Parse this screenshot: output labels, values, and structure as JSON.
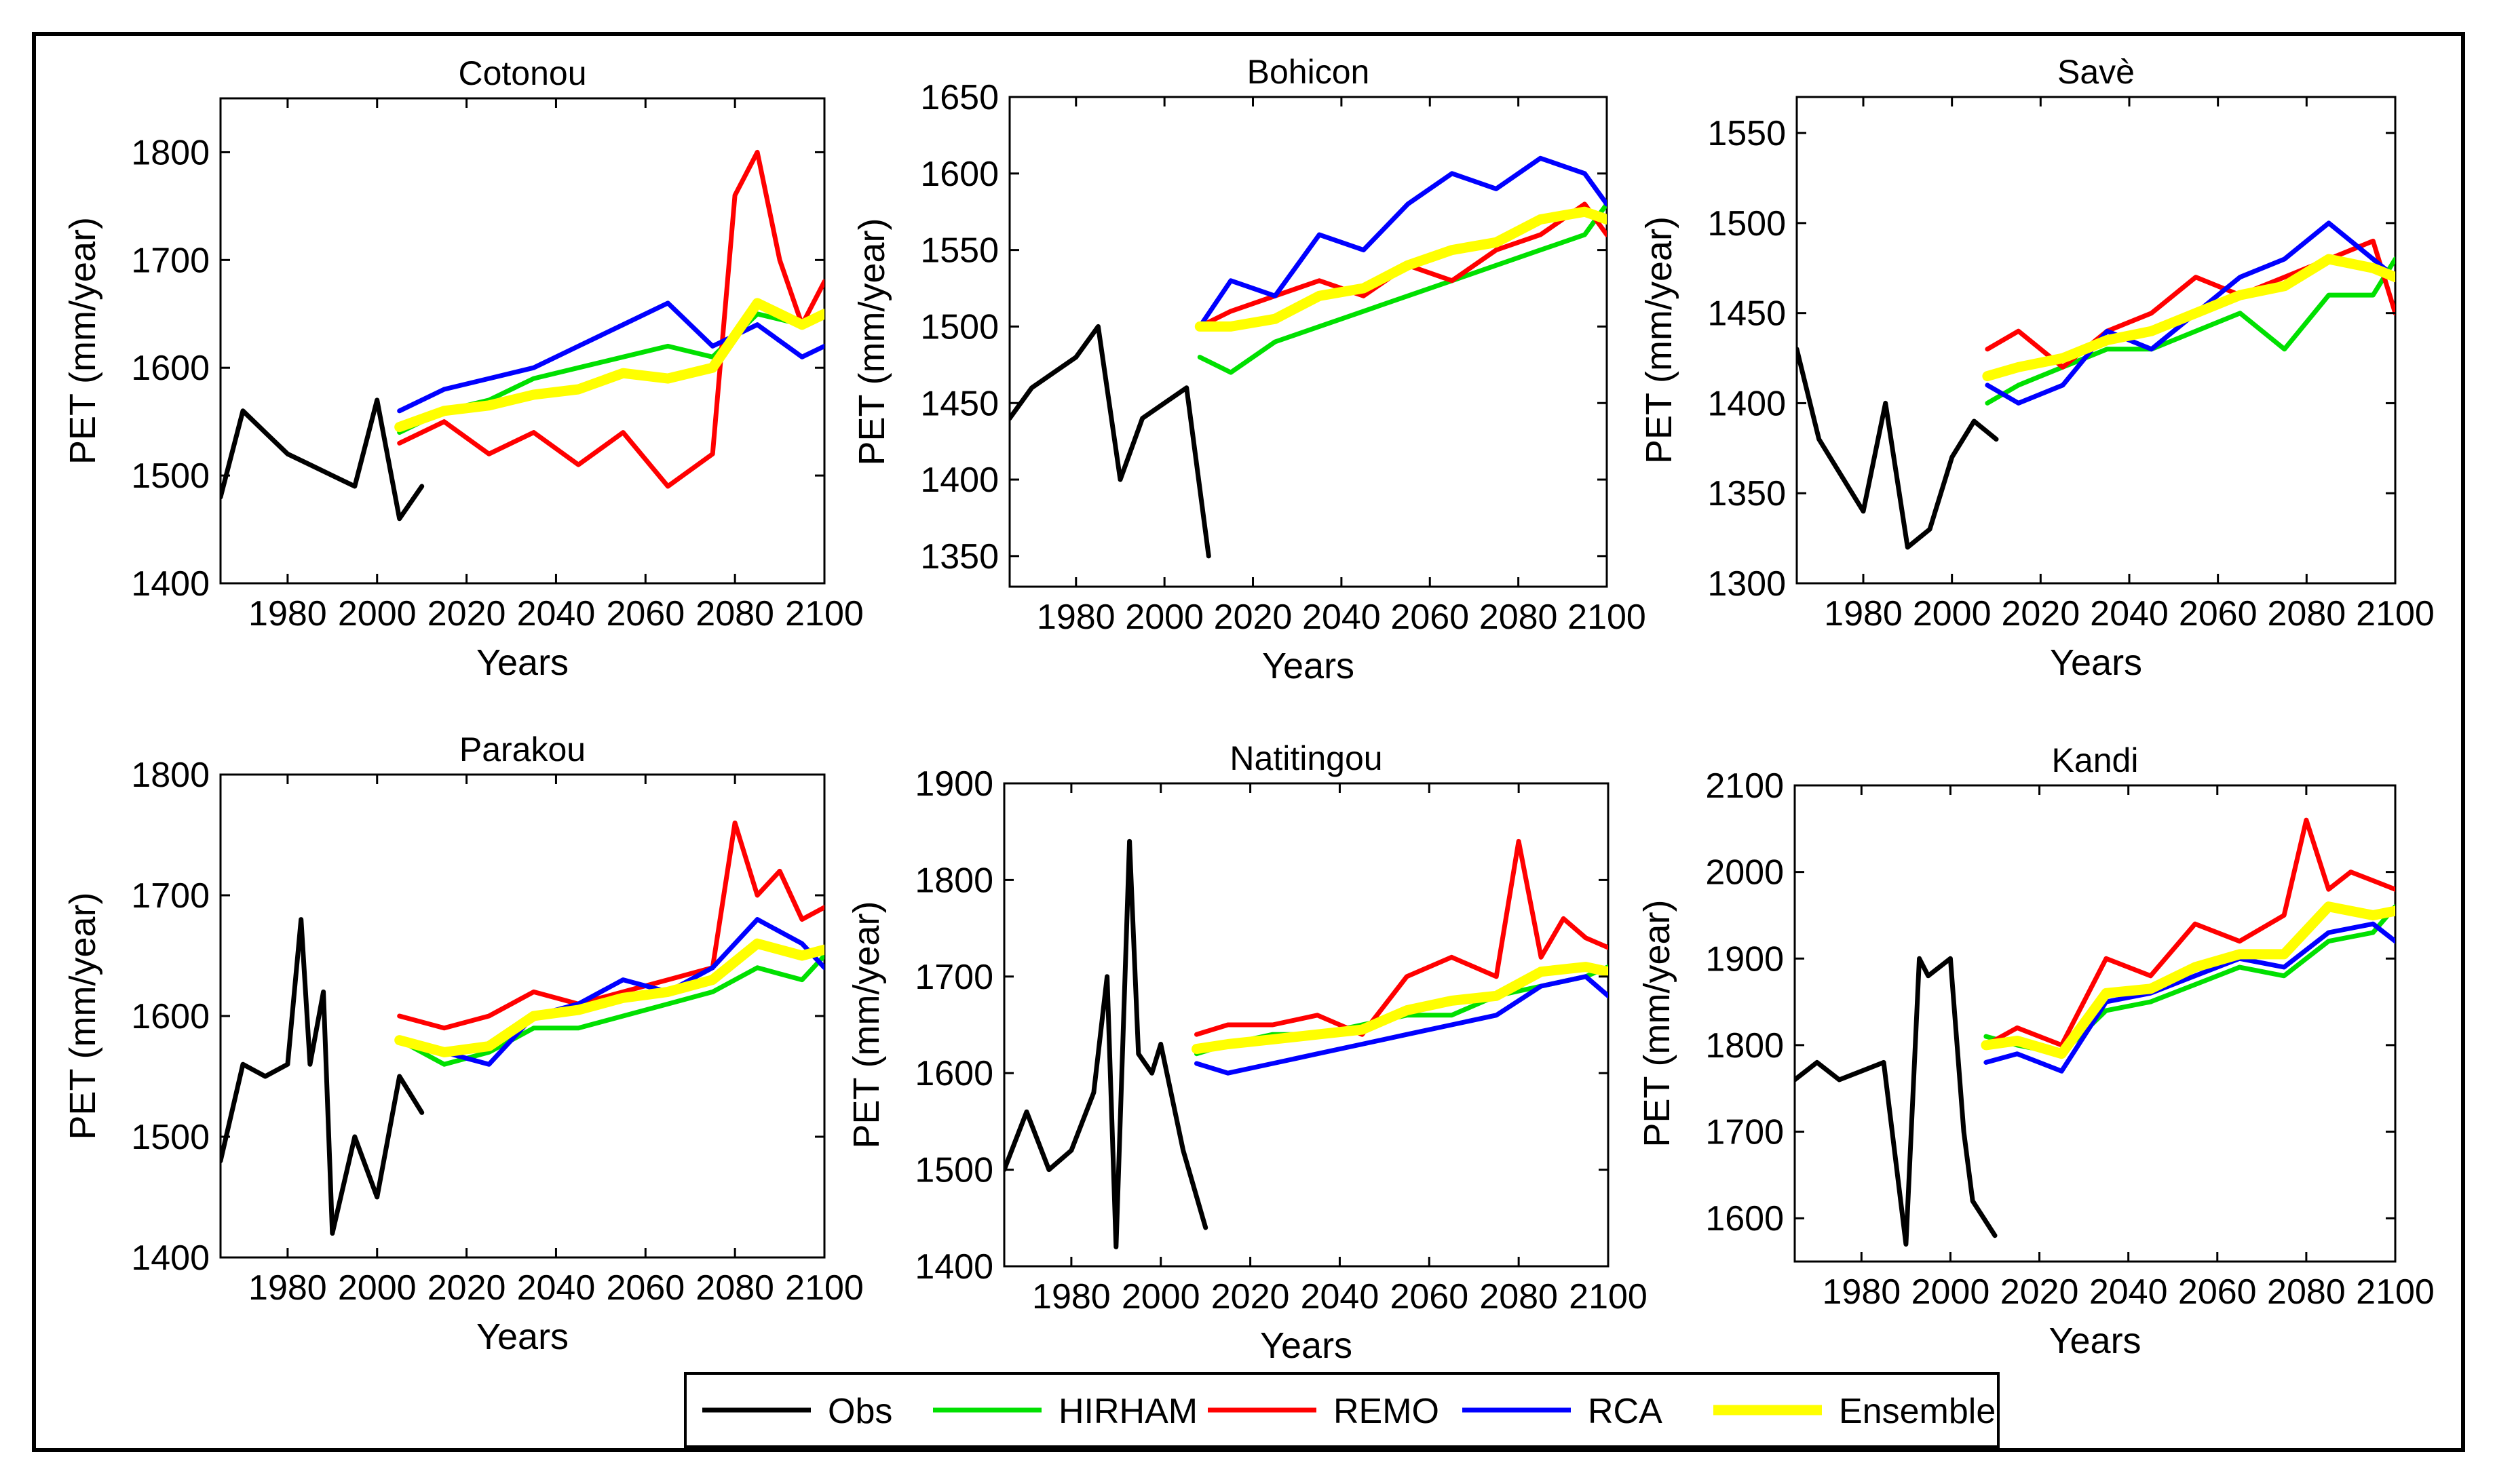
{
  "chart_data": {
    "type": "line",
    "layout": "grid-2x3",
    "xlim": [
      1965,
      2100
    ],
    "xticks": [
      1980,
      2000,
      2020,
      2040,
      2060,
      2080,
      2100
    ],
    "xlabel": "Years",
    "legend": {
      "placement": "bottom-center",
      "entries": [
        {
          "name": "Obs",
          "color": "#000000"
        },
        {
          "name": "HIRHAM",
          "color": "#00e000"
        },
        {
          "name": "REMO",
          "color": "#ff0000"
        },
        {
          "name": "RCA",
          "color": "#0000ff"
        },
        {
          "name": "Ensemble",
          "color": "#ffff00"
        }
      ]
    },
    "panels": [
      {
        "title": "Cotonou",
        "ylabel": "PET (mm/year)",
        "ylim": [
          1400,
          1850
        ],
        "yticks": [
          1400,
          1500,
          1600,
          1700,
          1800
        ],
        "series": [
          {
            "name": "Obs",
            "x": [
              1965,
              1970,
              1975,
              1980,
              1985,
              1990,
              1995,
              2000,
              2005,
              2010
            ],
            "values": [
              1480,
              1560,
              1540,
              1520,
              1510,
              1500,
              1490,
              1570,
              1460,
              1490
            ]
          },
          {
            "name": "HIRHAM",
            "x": [
              2005,
              2015,
              2025,
              2035,
              2045,
              2055,
              2065,
              2075,
              2085,
              2095,
              2100
            ],
            "values": [
              1540,
              1560,
              1570,
              1590,
              1600,
              1610,
              1620,
              1610,
              1650,
              1640,
              1650
            ]
          },
          {
            "name": "REMO",
            "x": [
              2005,
              2015,
              2025,
              2035,
              2045,
              2055,
              2065,
              2075,
              2080,
              2085,
              2090,
              2095,
              2100
            ],
            "values": [
              1530,
              1550,
              1520,
              1540,
              1510,
              1540,
              1490,
              1520,
              1760,
              1800,
              1700,
              1640,
              1680
            ]
          },
          {
            "name": "RCA",
            "x": [
              2005,
              2015,
              2025,
              2035,
              2045,
              2055,
              2065,
              2075,
              2085,
              2095,
              2100
            ],
            "values": [
              1560,
              1580,
              1590,
              1600,
              1620,
              1640,
              1660,
              1620,
              1640,
              1610,
              1620
            ]
          },
          {
            "name": "Ensemble",
            "x": [
              2005,
              2015,
              2025,
              2035,
              2045,
              2055,
              2065,
              2075,
              2085,
              2095,
              2100
            ],
            "values": [
              1545,
              1560,
              1565,
              1575,
              1580,
              1595,
              1590,
              1600,
              1660,
              1640,
              1650
            ]
          }
        ]
      },
      {
        "title": "Bohicon",
        "ylabel": "PET (mm/year)",
        "ylim": [
          1330,
          1650
        ],
        "yticks": [
          1350,
          1400,
          1450,
          1500,
          1550,
          1600,
          1650
        ],
        "series": [
          {
            "name": "Obs",
            "x": [
              1965,
              1970,
              1975,
              1980,
              1985,
              1990,
              1995,
              2000,
              2005,
              2010
            ],
            "values": [
              1440,
              1460,
              1470,
              1480,
              1500,
              1400,
              1440,
              1450,
              1460,
              1350
            ]
          },
          {
            "name": "HIRHAM",
            "x": [
              2008,
              2015,
              2025,
              2035,
              2045,
              2055,
              2065,
              2075,
              2085,
              2095,
              2100
            ],
            "values": [
              1480,
              1470,
              1490,
              1500,
              1510,
              1520,
              1530,
              1540,
              1550,
              1560,
              1580
            ]
          },
          {
            "name": "REMO",
            "x": [
              2008,
              2015,
              2025,
              2035,
              2045,
              2055,
              2065,
              2075,
              2085,
              2095,
              2100
            ],
            "values": [
              1500,
              1510,
              1520,
              1530,
              1520,
              1540,
              1530,
              1550,
              1560,
              1580,
              1560
            ]
          },
          {
            "name": "RCA",
            "x": [
              2008,
              2015,
              2025,
              2035,
              2045,
              2055,
              2065,
              2075,
              2085,
              2095,
              2100
            ],
            "values": [
              1500,
              1530,
              1520,
              1560,
              1550,
              1580,
              1600,
              1590,
              1610,
              1600,
              1580
            ]
          },
          {
            "name": "Ensemble",
            "x": [
              2008,
              2015,
              2025,
              2035,
              2045,
              2055,
              2065,
              2075,
              2085,
              2095,
              2100
            ],
            "values": [
              1500,
              1500,
              1505,
              1520,
              1525,
              1540,
              1550,
              1555,
              1570,
              1575,
              1570
            ]
          }
        ]
      },
      {
        "title": "Savè",
        "ylabel": "PET (mm/year)",
        "ylim": [
          1300,
          1570
        ],
        "yticks": [
          1300,
          1350,
          1400,
          1450,
          1500,
          1550
        ],
        "series": [
          {
            "name": "Obs",
            "x": [
              1965,
              1970,
              1975,
              1980,
              1985,
              1990,
              1995,
              2000,
              2005,
              2010
            ],
            "values": [
              1430,
              1380,
              1360,
              1340,
              1400,
              1320,
              1330,
              1370,
              1390,
              1380
            ]
          },
          {
            "name": "HIRHAM",
            "x": [
              2008,
              2015,
              2025,
              2035,
              2045,
              2055,
              2065,
              2075,
              2085,
              2095,
              2100
            ],
            "values": [
              1400,
              1410,
              1420,
              1430,
              1430,
              1440,
              1450,
              1430,
              1460,
              1460,
              1480
            ]
          },
          {
            "name": "REMO",
            "x": [
              2008,
              2015,
              2025,
              2035,
              2045,
              2055,
              2065,
              2075,
              2085,
              2095,
              2100
            ],
            "values": [
              1430,
              1440,
              1420,
              1440,
              1450,
              1470,
              1460,
              1470,
              1480,
              1490,
              1450
            ]
          },
          {
            "name": "RCA",
            "x": [
              2008,
              2015,
              2025,
              2035,
              2045,
              2055,
              2065,
              2075,
              2085,
              2095,
              2100
            ],
            "values": [
              1410,
              1400,
              1410,
              1440,
              1430,
              1450,
              1470,
              1480,
              1500,
              1480,
              1470
            ]
          },
          {
            "name": "Ensemble",
            "x": [
              2008,
              2015,
              2025,
              2035,
              2045,
              2055,
              2065,
              2075,
              2085,
              2095,
              2100
            ],
            "values": [
              1415,
              1420,
              1425,
              1435,
              1440,
              1450,
              1460,
              1465,
              1480,
              1475,
              1470
            ]
          }
        ]
      },
      {
        "title": "Parakou",
        "ylabel": "PET (mm/year)",
        "ylim": [
          1400,
          1800
        ],
        "yticks": [
          1400,
          1500,
          1600,
          1700,
          1800
        ],
        "series": [
          {
            "name": "Obs",
            "x": [
              1965,
              1970,
              1975,
              1980,
              1983,
              1985,
              1988,
              1990,
              1995,
              2000,
              2005,
              2010
            ],
            "values": [
              1480,
              1560,
              1550,
              1560,
              1680,
              1560,
              1620,
              1420,
              1500,
              1450,
              1550,
              1520
            ]
          },
          {
            "name": "HIRHAM",
            "x": [
              2005,
              2015,
              2025,
              2035,
              2045,
              2055,
              2065,
              2075,
              2085,
              2095,
              2100
            ],
            "values": [
              1580,
              1560,
              1570,
              1590,
              1590,
              1600,
              1610,
              1620,
              1640,
              1630,
              1650
            ]
          },
          {
            "name": "REMO",
            "x": [
              2005,
              2015,
              2025,
              2035,
              2045,
              2055,
              2065,
              2075,
              2080,
              2085,
              2090,
              2095,
              2100
            ],
            "values": [
              1600,
              1590,
              1600,
              1620,
              1610,
              1620,
              1630,
              1640,
              1760,
              1700,
              1720,
              1680,
              1690
            ]
          },
          {
            "name": "RCA",
            "x": [
              2005,
              2015,
              2025,
              2035,
              2045,
              2055,
              2065,
              2075,
              2085,
              2095,
              2100
            ],
            "values": [
              1580,
              1570,
              1560,
              1600,
              1610,
              1630,
              1620,
              1640,
              1680,
              1660,
              1640
            ]
          },
          {
            "name": "Ensemble",
            "x": [
              2005,
              2015,
              2025,
              2035,
              2045,
              2055,
              2065,
              2075,
              2085,
              2095,
              2100
            ],
            "values": [
              1580,
              1570,
              1575,
              1600,
              1605,
              1615,
              1620,
              1630,
              1660,
              1650,
              1655
            ]
          }
        ]
      },
      {
        "title": "Natitingou",
        "ylabel": "PET (mm/year)",
        "ylim": [
          1400,
          1900
        ],
        "yticks": [
          1400,
          1500,
          1600,
          1700,
          1800,
          1900
        ],
        "series": [
          {
            "name": "Obs",
            "x": [
              1965,
              1970,
              1975,
              1980,
              1985,
              1988,
              1990,
              1993,
              1995,
              1998,
              2000,
              2005,
              2010
            ],
            "values": [
              1500,
              1560,
              1500,
              1520,
              1580,
              1700,
              1420,
              1840,
              1620,
              1600,
              1630,
              1520,
              1440
            ]
          },
          {
            "name": "HIRHAM",
            "x": [
              2008,
              2015,
              2025,
              2035,
              2045,
              2055,
              2065,
              2075,
              2085,
              2095,
              2100
            ],
            "values": [
              1620,
              1630,
              1640,
              1640,
              1650,
              1660,
              1660,
              1680,
              1690,
              1700,
              1710
            ]
          },
          {
            "name": "REMO",
            "x": [
              2008,
              2015,
              2025,
              2035,
              2045,
              2055,
              2065,
              2075,
              2080,
              2085,
              2090,
              2095,
              2100
            ],
            "values": [
              1640,
              1650,
              1650,
              1660,
              1640,
              1700,
              1720,
              1700,
              1840,
              1720,
              1760,
              1740,
              1730
            ]
          },
          {
            "name": "RCA",
            "x": [
              2008,
              2015,
              2025,
              2035,
              2045,
              2055,
              2065,
              2075,
              2085,
              2095,
              2100
            ],
            "values": [
              1610,
              1600,
              1610,
              1620,
              1630,
              1640,
              1650,
              1660,
              1690,
              1700,
              1680
            ]
          },
          {
            "name": "Ensemble",
            "x": [
              2008,
              2015,
              2025,
              2035,
              2045,
              2055,
              2065,
              2075,
              2085,
              2095,
              2100
            ],
            "values": [
              1625,
              1630,
              1635,
              1640,
              1645,
              1665,
              1675,
              1680,
              1705,
              1710,
              1705
            ]
          }
        ]
      },
      {
        "title": "Kandi",
        "ylabel": "PET (mm/year)",
        "ylim": [
          1550,
          2100
        ],
        "yticks": [
          1600,
          1700,
          1800,
          1900,
          2000,
          2100
        ],
        "series": [
          {
            "name": "Obs",
            "x": [
              1965,
              1970,
              1975,
              1980,
              1985,
              1990,
              1993,
              1995,
              2000,
              2003,
              2005,
              2010
            ],
            "values": [
              1760,
              1780,
              1760,
              1770,
              1780,
              1570,
              1900,
              1880,
              1900,
              1700,
              1620,
              1580
            ]
          },
          {
            "name": "HIRHAM",
            "x": [
              2008,
              2015,
              2025,
              2035,
              2045,
              2055,
              2065,
              2075,
              2085,
              2095,
              2100
            ],
            "values": [
              1810,
              1800,
              1790,
              1840,
              1850,
              1870,
              1890,
              1880,
              1920,
              1930,
              1960
            ]
          },
          {
            "name": "REMO",
            "x": [
              2008,
              2015,
              2025,
              2035,
              2045,
              2055,
              2065,
              2075,
              2080,
              2085,
              2090,
              2095,
              2100
            ],
            "values": [
              1800,
              1820,
              1800,
              1900,
              1880,
              1940,
              1920,
              1950,
              2060,
              1980,
              2000,
              1990,
              1980
            ]
          },
          {
            "name": "RCA",
            "x": [
              2008,
              2015,
              2025,
              2035,
              2045,
              2055,
              2065,
              2075,
              2085,
              2095,
              2100
            ],
            "values": [
              1780,
              1790,
              1770,
              1850,
              1860,
              1880,
              1900,
              1890,
              1930,
              1940,
              1920
            ]
          },
          {
            "name": "Ensemble",
            "x": [
              2008,
              2015,
              2025,
              2035,
              2045,
              2055,
              2065,
              2075,
              2085,
              2095,
              2100
            ],
            "values": [
              1800,
              1805,
              1790,
              1860,
              1865,
              1890,
              1905,
              1905,
              1960,
              1950,
              1955
            ]
          }
        ]
      }
    ]
  }
}
